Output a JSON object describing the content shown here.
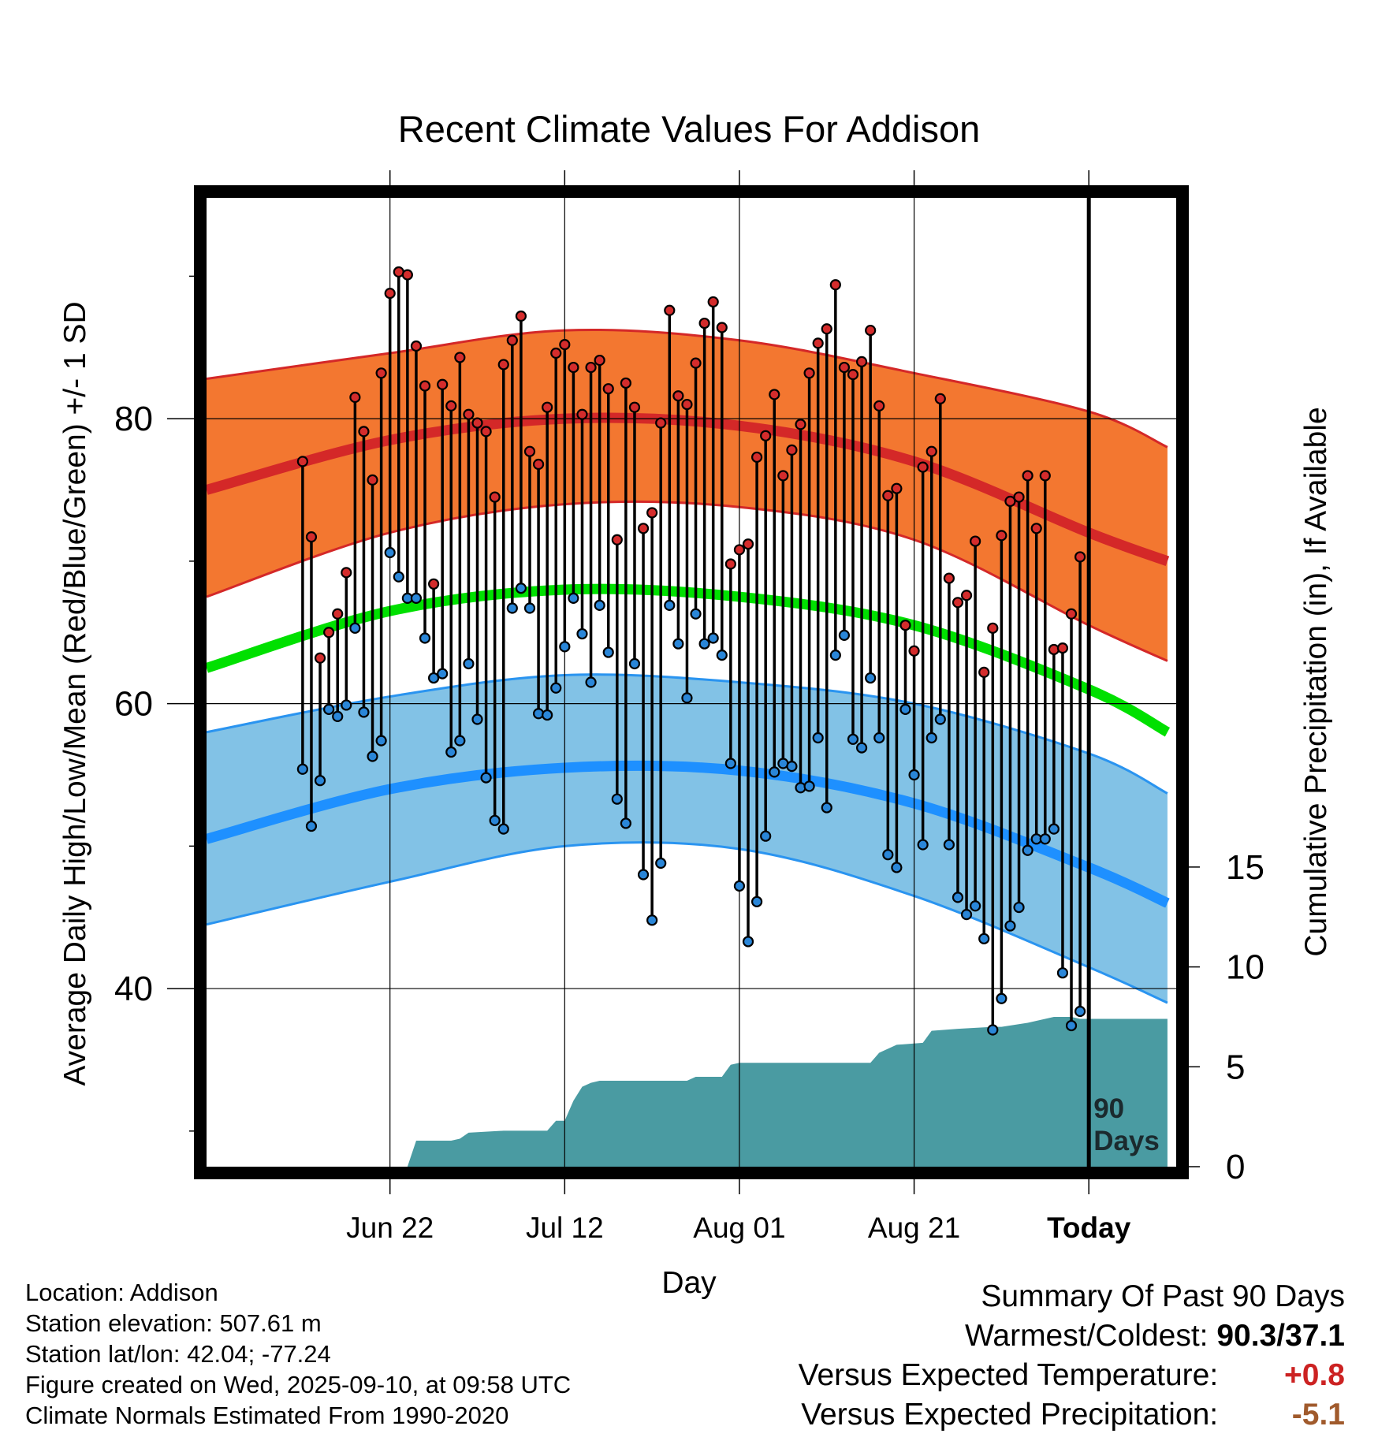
{
  "chart_data": {
    "type": "line",
    "title": "Recent Climate Values For Addison",
    "xlabel": "Day",
    "ylabel": "Average Daily High/Low/Mean (Red/Blue/Green) +/- 1 SD",
    "y2label": "Cumulative Precipitation (in), If Available",
    "xlim": [
      -101,
      10
    ],
    "ylim": [
      27.5,
      95.5
    ],
    "y2lim": [
      0,
      48.5
    ],
    "xticks": [
      {
        "value": -80,
        "label": "Jun 22"
      },
      {
        "value": -60,
        "label": "Jul 12"
      },
      {
        "value": -40,
        "label": "Aug 01"
      },
      {
        "value": -20,
        "label": "Aug 21"
      },
      {
        "value": 0,
        "label": "Today"
      }
    ],
    "yticks_major": [
      40,
      60,
      80
    ],
    "yticks_minor": [
      30,
      50,
      70,
      90
    ],
    "y2ticks": [
      0,
      5,
      10,
      15
    ],
    "window_label": [
      "90",
      "Days"
    ],
    "colors": {
      "high_band": "#f37730",
      "high_line": "#d42828",
      "low_band": "#82c2e6",
      "low_line": "#1e90ff",
      "low_edge": "#2a94f0",
      "mean_line": "#00e000",
      "precip": "#4a9ba2",
      "high_dot": "#d42c2c",
      "low_dot": "#2a86d8"
    },
    "series": [
      {
        "name": "Normal High",
        "x": [
          -101,
          -80,
          -60,
          -40,
          -20,
          0,
          9
        ],
        "values": [
          75,
          78.5,
          80,
          79.5,
          77,
          72,
          70
        ]
      },
      {
        "name": "Normal High +1 SD",
        "x": [
          -101,
          -80,
          -60,
          -40,
          -20,
          0,
          9
        ],
        "values": [
          82.8,
          84.6,
          86.2,
          85.5,
          83.2,
          80.5,
          78
        ]
      },
      {
        "name": "Normal High -1 SD",
        "x": [
          -101,
          -80,
          -60,
          -40,
          -20,
          0,
          9
        ],
        "values": [
          67.5,
          72,
          74,
          73.8,
          71.5,
          65.5,
          63
        ]
      },
      {
        "name": "Normal Mean",
        "x": [
          -101,
          -80,
          -60,
          -40,
          -20,
          0,
          9
        ],
        "values": [
          62.5,
          66.5,
          68,
          67.5,
          65.5,
          61,
          58
        ]
      },
      {
        "name": "Normal Low",
        "x": [
          -101,
          -80,
          -60,
          -40,
          -20,
          0,
          9
        ],
        "values": [
          50.5,
          54,
          55.5,
          55.3,
          53,
          48.5,
          46
        ]
      },
      {
        "name": "Normal Low +1 SD",
        "x": [
          -101,
          -80,
          -60,
          -40,
          -20,
          0,
          9
        ],
        "values": [
          58,
          60.5,
          62,
          61.5,
          60,
          56.5,
          53.7
        ]
      },
      {
        "name": "Normal Low -1 SD",
        "x": [
          -101,
          -80,
          -60,
          -40,
          -20,
          0,
          9
        ],
        "values": [
          44.5,
          47.5,
          50,
          49.8,
          46.5,
          41.5,
          39
        ]
      }
    ],
    "daily_start_day": -90,
    "daily_highs": [
      77.0,
      71.7,
      63.2,
      65.0,
      66.3,
      69.2,
      81.5,
      79.1,
      75.7,
      83.2,
      88.8,
      90.3,
      90.1,
      85.1,
      82.3,
      68.4,
      82.4,
      80.9,
      84.3,
      80.3,
      79.7,
      79.1,
      74.5,
      83.8,
      85.5,
      87.2,
      77.7,
      76.8,
      80.8,
      84.6,
      85.2,
      83.6,
      80.3,
      83.6,
      84.1,
      82.1,
      71.5,
      82.5,
      80.8,
      72.3,
      73.4,
      79.7,
      87.6,
      81.6,
      81.0,
      83.9,
      86.7,
      88.2,
      86.4,
      69.8,
      70.8,
      71.2,
      77.3,
      78.8,
      81.7,
      76.0,
      77.8,
      79.6,
      83.2,
      85.3,
      86.3,
      89.4,
      83.6,
      83.1,
      84.0,
      86.2,
      80.9,
      74.6,
      75.1,
      65.5,
      63.7,
      76.6,
      77.7,
      81.4,
      68.8,
      67.1,
      67.6,
      71.4,
      62.2,
      65.3,
      71.8,
      74.2,
      74.5,
      76.0,
      72.3,
      76.0,
      63.8,
      63.9,
      66.3,
      70.3
    ],
    "daily_lows": [
      55.4,
      51.4,
      54.6,
      59.6,
      59.1,
      59.9,
      65.3,
      59.4,
      56.3,
      57.4,
      70.6,
      68.9,
      67.4,
      67.4,
      64.6,
      61.8,
      62.1,
      56.6,
      57.4,
      62.8,
      58.9,
      54.8,
      51.8,
      51.2,
      66.7,
      68.1,
      66.7,
      59.3,
      59.2,
      61.1,
      64.0,
      67.4,
      64.9,
      61.5,
      66.9,
      63.6,
      53.3,
      51.6,
      62.8,
      48.0,
      44.8,
      48.8,
      66.9,
      64.2,
      60.4,
      66.3,
      64.2,
      64.6,
      63.4,
      55.8,
      47.2,
      43.3,
      46.1,
      50.7,
      55.2,
      55.8,
      55.6,
      54.1,
      54.2,
      57.6,
      52.7,
      63.4,
      64.8,
      57.5,
      56.9,
      61.8,
      57.6,
      49.4,
      48.5,
      59.6,
      55.0,
      50.1,
      57.6,
      58.9,
      50.1,
      46.4,
      45.2,
      45.8,
      43.5,
      37.1,
      39.3,
      44.4,
      45.7,
      49.7,
      50.5,
      50.5,
      51.2,
      41.1,
      37.4,
      38.4
    ],
    "precip_steps": [
      [
        -90,
        0
      ],
      [
        -78,
        0
      ],
      [
        -77,
        1.3
      ],
      [
        -73,
        1.3
      ],
      [
        -72,
        1.4
      ],
      [
        -71,
        1.7
      ],
      [
        -67,
        1.8
      ],
      [
        -62,
        1.8
      ],
      [
        -61,
        2.3
      ],
      [
        -60,
        2.3
      ],
      [
        -59,
        3.3
      ],
      [
        -58,
        4
      ],
      [
        -57,
        4.2
      ],
      [
        -56,
        4.3
      ],
      [
        -46,
        4.3
      ],
      [
        -45,
        4.5
      ],
      [
        -42,
        4.5
      ],
      [
        -41,
        5.1
      ],
      [
        -40,
        5.2
      ],
      [
        -34,
        5.2
      ],
      [
        -33,
        5.2
      ],
      [
        -25,
        5.2
      ],
      [
        -24,
        5.7
      ],
      [
        -22,
        6.1
      ],
      [
        -19,
        6.2
      ],
      [
        -18,
        6.8
      ],
      [
        -15,
        6.9
      ],
      [
        -11,
        7
      ],
      [
        -10,
        7
      ],
      [
        -7,
        7.2
      ],
      [
        -5,
        7.4
      ],
      [
        -4,
        7.5
      ],
      [
        -3,
        7.5
      ],
      [
        -2,
        7.5
      ],
      [
        -1,
        7.4
      ],
      [
        9,
        7.4
      ]
    ]
  },
  "metadata": {
    "location": "Location: Addison",
    "elevation": "Station elevation: 507.61 m",
    "latlon": "Station lat/lon: 42.04; -77.24",
    "created": "Figure created on Wed, 2025-09-10, at 09:58 UTC",
    "normals": "Climate Normals Estimated From 1990-2020"
  },
  "summary": {
    "title": "Summary Of Past 90 Days",
    "warmest_coldest_label": "Warmest/Coldest:",
    "warmest_coldest_value": "90.3/37.1",
    "temp_label": "Versus Expected Temperature:",
    "temp_value": "+0.8",
    "temp_color": "#cc2222",
    "precip_label": "Versus Expected Precipitation:",
    "precip_value": "-5.1",
    "precip_color": "#a05a2c"
  }
}
